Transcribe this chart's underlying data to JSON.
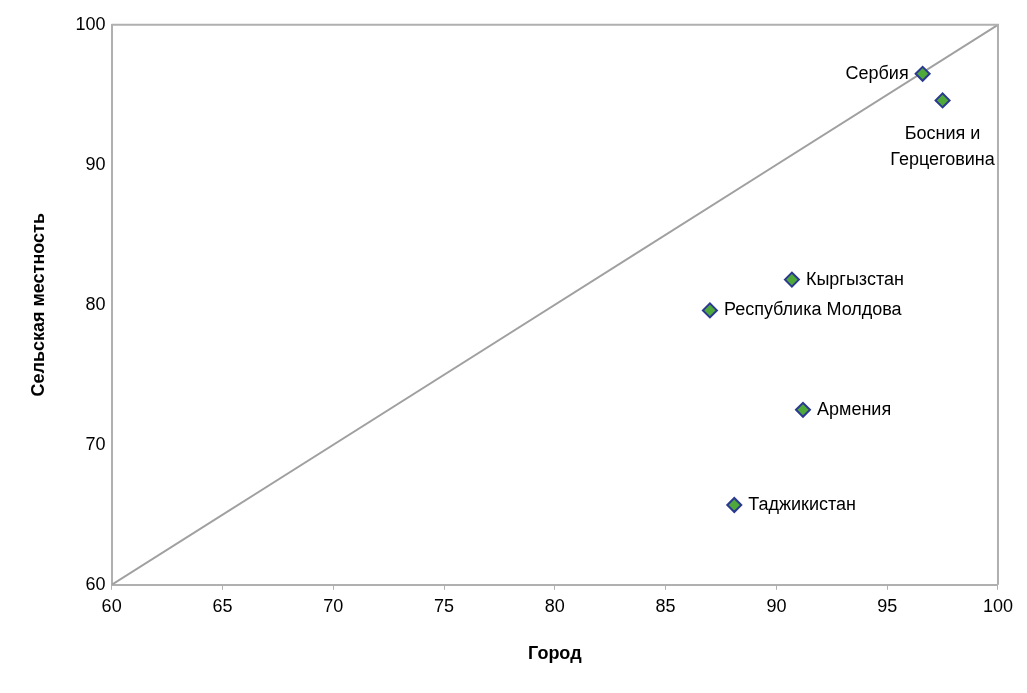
{
  "chart_data": {
    "type": "scatter",
    "xlabel": "Город",
    "ylabel": "Сельская местность",
    "xlim": [
      60,
      100
    ],
    "xticks": [
      60,
      65,
      70,
      75,
      80,
      85,
      90,
      95,
      100
    ],
    "ylim": [
      60,
      100
    ],
    "yticks": [
      60,
      70,
      80,
      90,
      100
    ],
    "grid": false,
    "legend": false,
    "marker": "diamond",
    "series": [
      {
        "color": "#4ea83a",
        "x": [
          96.6,
          97.5,
          90.7,
          87.0,
          91.2,
          88.1
        ],
        "values": [
          96.5,
          94.6,
          81.8,
          79.6,
          72.5,
          65.7
        ]
      },
      {
        "type": "line",
        "color": "#a0a0a0",
        "marker": "none",
        "x": [
          60,
          100
        ],
        "values": [
          60,
          100
        ]
      }
    ],
    "annotations": [
      {
        "text": "Сербия",
        "x": 96.6,
        "y": 96.5
      },
      {
        "text": "Босния и Герцеговина",
        "x": 97.5,
        "y": 94.6
      },
      {
        "text": "Кыргызстан",
        "x": 90.7,
        "y": 81.8
      },
      {
        "text": "Республика Молдова",
        "x": 87.0,
        "y": 79.6
      },
      {
        "text": "Армения",
        "x": 91.2,
        "y": 72.5
      },
      {
        "text": "Таджикистан",
        "x": 88.1,
        "y": 65.7
      }
    ]
  }
}
